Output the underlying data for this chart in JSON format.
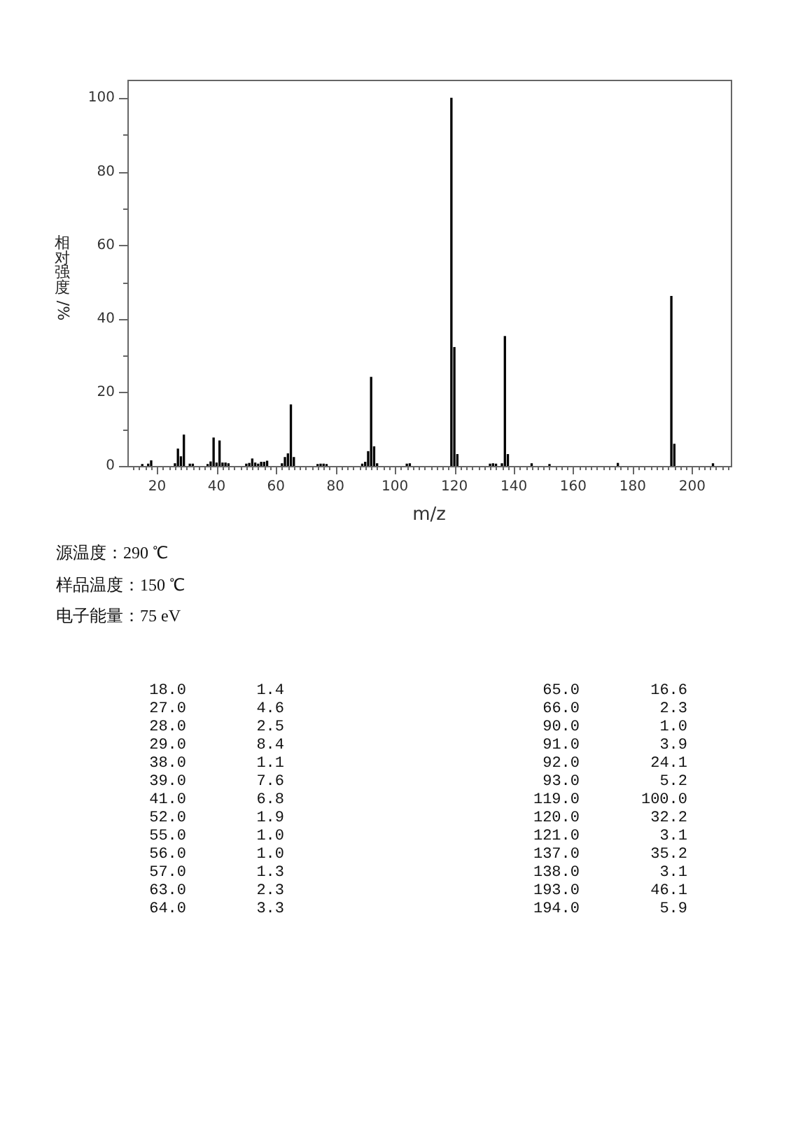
{
  "chart_data": [
    {
      "type": "bar",
      "xlabel": "m/z",
      "ylabel": "相对强度/%",
      "annotations": [
        "源温度：290 ℃",
        "样品温度：150 ℃",
        "电子能量：75 eV"
      ],
      "x": [
        15,
        17,
        18,
        26,
        27,
        28,
        29,
        31,
        32,
        37,
        38,
        39,
        40,
        41,
        42,
        43,
        44,
        50,
        51,
        52,
        53,
        54,
        55,
        56,
        57,
        62,
        63,
        64,
        65,
        66,
        74,
        75,
        76,
        77,
        89,
        90,
        91,
        92,
        93,
        94,
        104,
        105,
        119,
        120,
        121,
        132,
        133,
        134,
        136,
        137,
        138,
        146,
        152,
        175,
        193,
        194,
        207
      ],
      "values": [
        0.4,
        0.5,
        1.4,
        0.6,
        4.6,
        2.5,
        8.4,
        0.5,
        0.5,
        0.4,
        1.1,
        7.6,
        0.8,
        6.8,
        0.8,
        0.8,
        0.6,
        0.5,
        0.7,
        1.9,
        0.8,
        0.5,
        1.0,
        1.0,
        1.3,
        0.6,
        2.3,
        3.3,
        16.6,
        2.3,
        0.4,
        0.5,
        0.5,
        0.4,
        0.5,
        1.0,
        3.9,
        24.1,
        5.2,
        0.6,
        0.5,
        0.6,
        100.0,
        32.2,
        3.1,
        0.5,
        0.6,
        0.5,
        0.6,
        35.2,
        3.1,
        0.6,
        0.4,
        0.7,
        46.1,
        5.9,
        0.6
      ],
      "color": "#000000",
      "xlim": [
        10,
        213
      ],
      "ylim": [
        0,
        105
      ],
      "xticks": [
        {
          "value": 12,
          "label": null
        },
        {
          "value": 14,
          "label": null
        },
        {
          "value": 16,
          "label": null
        },
        {
          "value": 18,
          "label": null
        },
        20,
        {
          "value": 22,
          "label": null
        },
        {
          "value": 24,
          "label": null
        },
        {
          "value": 26,
          "label": null
        },
        {
          "value": 28,
          "label": null
        },
        {
          "value": 30,
          "label": null
        },
        {
          "value": 32,
          "label": null
        },
        {
          "value": 34,
          "label": null
        },
        {
          "value": 36,
          "label": null
        },
        {
          "value": 38,
          "label": null
        },
        40,
        {
          "value": 42,
          "label": null
        },
        {
          "value": 44,
          "label": null
        },
        {
          "value": 46,
          "label": null
        },
        {
          "value": 48,
          "label": null
        },
        {
          "value": 50,
          "label": null
        },
        {
          "value": 52,
          "label": null
        },
        {
          "value": 54,
          "label": null
        },
        {
          "value": 56,
          "label": null
        },
        {
          "value": 58,
          "label": null
        },
        60,
        {
          "value": 62,
          "label": null
        },
        {
          "value": 64,
          "label": null
        },
        {
          "value": 66,
          "label": null
        },
        {
          "value": 68,
          "label": null
        },
        {
          "value": 70,
          "label": null
        },
        {
          "value": 72,
          "label": null
        },
        {
          "value": 74,
          "label": null
        },
        {
          "value": 76,
          "label": null
        },
        {
          "value": 78,
          "label": null
        },
        80,
        {
          "value": 82,
          "label": null
        },
        {
          "value": 84,
          "label": null
        },
        {
          "value": 86,
          "label": null
        },
        {
          "value": 88,
          "label": null
        },
        {
          "value": 90,
          "label": null
        },
        {
          "value": 92,
          "label": null
        },
        {
          "value": 94,
          "label": null
        },
        {
          "value": 96,
          "label": null
        },
        {
          "value": 98,
          "label": null
        },
        100,
        {
          "value": 102,
          "label": null
        },
        {
          "value": 104,
          "label": null
        },
        {
          "value": 106,
          "label": null
        },
        {
          "value": 108,
          "label": null
        },
        {
          "value": 110,
          "label": null
        },
        {
          "value": 112,
          "label": null
        },
        {
          "value": 114,
          "label": null
        },
        {
          "value": 116,
          "label": null
        },
        {
          "value": 118,
          "label": null
        },
        120,
        {
          "value": 122,
          "label": null
        },
        {
          "value": 124,
          "label": null
        },
        {
          "value": 126,
          "label": null
        },
        {
          "value": 128,
          "label": null
        },
        {
          "value": 130,
          "label": null
        },
        {
          "value": 132,
          "label": null
        },
        {
          "value": 134,
          "label": null
        },
        {
          "value": 136,
          "label": null
        },
        {
          "value": 138,
          "label": null
        },
        140,
        {
          "value": 142,
          "label": null
        },
        {
          "value": 144,
          "label": null
        },
        {
          "value": 146,
          "label": null
        },
        {
          "value": 148,
          "label": null
        },
        {
          "value": 150,
          "label": null
        },
        {
          "value": 152,
          "label": null
        },
        {
          "value": 154,
          "label": null
        },
        {
          "value": 156,
          "label": null
        },
        {
          "value": 158,
          "label": null
        },
        160,
        {
          "value": 162,
          "label": null
        },
        {
          "value": 164,
          "label": null
        },
        {
          "value": 166,
          "label": null
        },
        {
          "value": 168,
          "label": null
        },
        {
          "value": 170,
          "label": null
        },
        {
          "value": 172,
          "label": null
        },
        {
          "value": 174,
          "label": null
        },
        {
          "value": 176,
          "label": null
        },
        {
          "value": 178,
          "label": null
        },
        180,
        {
          "value": 182,
          "label": null
        },
        {
          "value": 184,
          "label": null
        },
        {
          "value": 186,
          "label": null
        },
        {
          "value": 188,
          "label": null
        },
        {
          "value": 190,
          "label": null
        },
        {
          "value": 192,
          "label": null
        },
        {
          "value": 194,
          "label": null
        },
        {
          "value": 196,
          "label": null
        },
        {
          "value": 198,
          "label": null
        },
        200,
        {
          "value": 202,
          "label": null
        },
        {
          "value": 204,
          "label": null
        },
        {
          "value": 206,
          "label": null
        },
        {
          "value": 208,
          "label": null
        },
        {
          "value": 210,
          "label": null
        },
        {
          "value": 212,
          "label": null
        }
      ],
      "yticks": [
        0,
        {
          "value": 10,
          "label": null
        },
        20,
        {
          "value": 30,
          "label": null
        },
        40,
        {
          "value": 50,
          "label": null
        },
        60,
        {
          "value": 70,
          "label": null
        },
        80,
        {
          "value": 90,
          "label": null
        },
        100
      ]
    },
    {
      "type": "other",
      "annotations": [
        "18.0",
        "1.4",
        "65.0",
        "16.6",
        "27.0",
        "4.6",
        "66.0",
        "2.3",
        "28.0",
        "2.5",
        "90.0",
        "1.0",
        "29.0",
        "8.4",
        "91.0",
        "3.9",
        "38.0",
        "1.1",
        "92.0",
        "24.1",
        "39.0",
        "7.6",
        "93.0",
        "5.2",
        "41.0",
        "6.8",
        "119.0",
        "100.0",
        "52.0",
        "1.9",
        "120.0",
        "32.2",
        "55.0",
        "1.0",
        "121.0",
        "3.1",
        "56.0",
        "1.0",
        "137.0",
        "35.2",
        "57.0",
        "1.3",
        "138.0",
        "3.1",
        "63.0",
        "2.3",
        "193.0",
        "46.1",
        "64.0",
        "3.3",
        "194.0",
        "5.9"
      ]
    }
  ]
}
